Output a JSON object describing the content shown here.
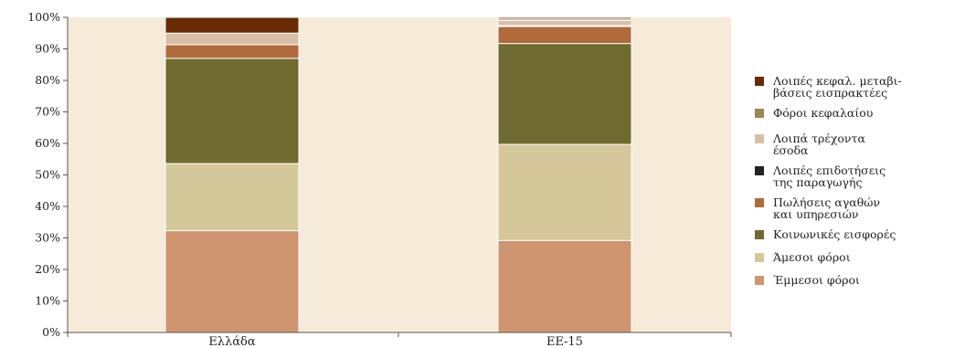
{
  "chart_data": {
    "type": "bar",
    "stacked": true,
    "percent": true,
    "categories": [
      "Ελλάδα",
      "ΕΕ-15"
    ],
    "ylim": [
      0,
      100
    ],
    "yticks": [
      "0%",
      "10%",
      "20%",
      "30%",
      "40%",
      "50%",
      "60%",
      "70%",
      "80%",
      "90%",
      "100%"
    ],
    "grid": false,
    "legend_position": "right",
    "plot_background": "#f6ead9",
    "series": [
      {
        "name": "Έμμεσοι φόροι",
        "color": "#cf9470",
        "values": [
          32.3,
          29.2
        ]
      },
      {
        "name": "Άμεσοι φόροι",
        "color": "#d4c89b",
        "values": [
          21.3,
          30.5
        ]
      },
      {
        "name": "Κοινωνικές εισφορές",
        "color": "#6f6b30",
        "values": [
          33.4,
          32.0
        ]
      },
      {
        "name": "Πωλήσεις αγαθών και υπηρεσιών",
        "color": "#b06a3b",
        "values": [
          4.3,
          5.4
        ]
      },
      {
        "name": "Λοιπές επιδοτήσεις της παραγωγής",
        "color": "#242424",
        "values": [
          0.0,
          0.3
        ]
      },
      {
        "name": "Λοιπά τρέχοντα έσοδα",
        "color": "#d9bea7",
        "values": [
          3.7,
          1.6
        ]
      },
      {
        "name": "Φόροι κεφαλαίου",
        "color": "#9b8655",
        "values": [
          0.0,
          0.5
        ]
      },
      {
        "name": "Λοιπές κεφαλ. μεταβιβάσεις εισπρακτέες",
        "color": "#6b2a06",
        "values": [
          5.0,
          0.5
        ]
      }
    ],
    "legend_labels": [
      [
        "Λοιπές κεφαλ. μεταβι-",
        "βάσεις εισπρακτέες"
      ],
      [
        "Φόροι κεφαλαίου"
      ],
      [
        "Λοιπά τρέχοντα",
        "έσοδα"
      ],
      [
        "Λοιπές επιδοτήσεις",
        "της παραγωγής"
      ],
      [
        "Πωλήσεις αγαθών",
        "και υπηρεσιών"
      ],
      [
        "Κοινωνικές εισφορές"
      ],
      [
        "Άμεσοι φόροι"
      ],
      [
        "Έμμεσοι φόροι"
      ]
    ],
    "legend_order": [
      7,
      6,
      5,
      4,
      3,
      2,
      1,
      0
    ]
  }
}
